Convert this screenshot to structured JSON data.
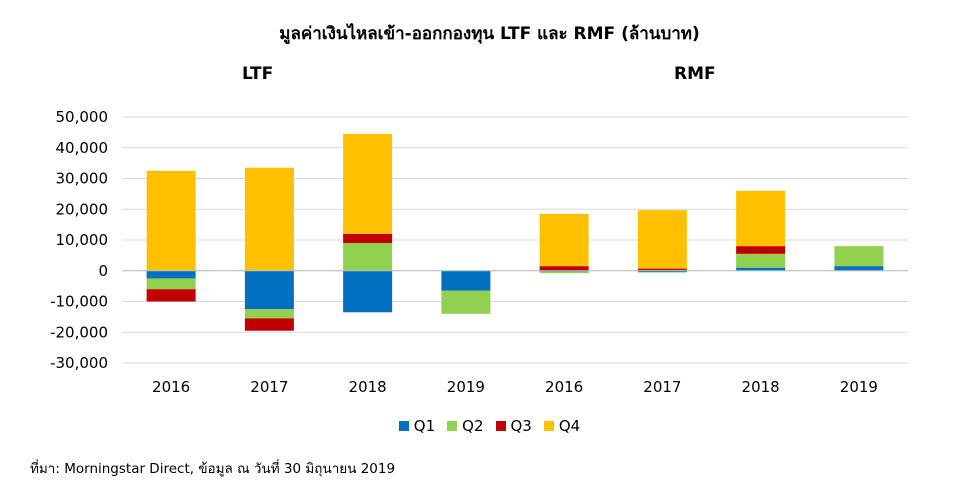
{
  "title": "มูลค่าเงินไหลเข้า-ออกกองทุน LTF และ RMF (ล้านบาท)",
  "group_labels": [
    "LTF",
    "RMF"
  ],
  "source": "ที่มา: Morningstar Direct, ข้อมูล ณ วันที่ 30 มิถุนายน 2019",
  "colors": {
    "Q1": "#0070c0",
    "Q2": "#92d050",
    "Q3": "#c00000",
    "Q4": "#ffc000"
  },
  "chart_data": {
    "type": "bar",
    "stacked": true,
    "categories": [
      "2016",
      "2017",
      "2018",
      "2019",
      "2016",
      "2017",
      "2018",
      "2019"
    ],
    "groups": [
      {
        "name": "LTF",
        "categories": [
          "2016",
          "2017",
          "2018",
          "2019"
        ]
      },
      {
        "name": "RMF",
        "categories": [
          "2016",
          "2017",
          "2018",
          "2019"
        ]
      }
    ],
    "series": [
      {
        "name": "Q1",
        "values": [
          -2500,
          -12500,
          -13500,
          -6500,
          -300,
          -500,
          1000,
          1500
        ]
      },
      {
        "name": "Q2",
        "values": [
          -3500,
          -3000,
          9000,
          -7500,
          -500,
          200,
          4500,
          6500
        ]
      },
      {
        "name": "Q3",
        "values": [
          -4000,
          -4000,
          3000,
          0,
          1500,
          500,
          2500,
          0
        ]
      },
      {
        "name": "Q4",
        "values": [
          32500,
          33500,
          32500,
          0,
          17000,
          19000,
          18000,
          0
        ]
      }
    ],
    "ylim": [
      -30000,
      50000
    ],
    "yticks": [
      -30000,
      -20000,
      -10000,
      0,
      10000,
      20000,
      30000,
      40000,
      50000
    ],
    "ytick_labels": [
      "-30,000",
      "-20,000",
      "-10,000",
      "0",
      "10,000",
      "20,000",
      "30,000",
      "40,000",
      "50,000"
    ],
    "grid": true,
    "legend_position": "bottom"
  }
}
